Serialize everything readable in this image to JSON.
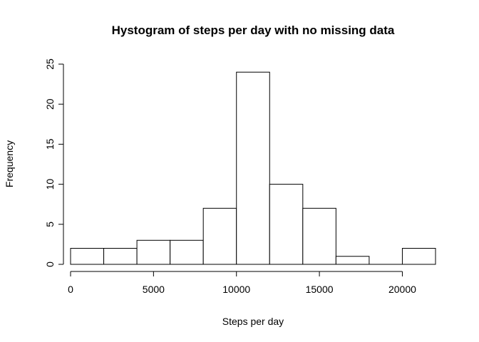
{
  "chart_data": {
    "type": "bar",
    "title": "Hystogram of steps per day with no missing data",
    "xlabel": "Steps per day",
    "ylabel": "Frequency",
    "bin_width": 2000,
    "bins": [
      {
        "from": 0,
        "to": 2000,
        "count": 2
      },
      {
        "from": 2000,
        "to": 4000,
        "count": 2
      },
      {
        "from": 4000,
        "to": 6000,
        "count": 3
      },
      {
        "from": 6000,
        "to": 8000,
        "count": 3
      },
      {
        "from": 8000,
        "to": 10000,
        "count": 7
      },
      {
        "from": 10000,
        "to": 12000,
        "count": 24
      },
      {
        "from": 12000,
        "to": 14000,
        "count": 10
      },
      {
        "from": 14000,
        "to": 16000,
        "count": 7
      },
      {
        "from": 16000,
        "to": 18000,
        "count": 1
      },
      {
        "from": 18000,
        "to": 20000,
        "count": 0
      },
      {
        "from": 20000,
        "to": 22000,
        "count": 2
      }
    ],
    "xlim": [
      0,
      22000
    ],
    "ylim": [
      0,
      25
    ],
    "x_ticks": [
      0,
      5000,
      10000,
      15000,
      20000
    ],
    "y_ticks": [
      0,
      5,
      10,
      15,
      20,
      25
    ],
    "grid": false,
    "legend": "none"
  }
}
